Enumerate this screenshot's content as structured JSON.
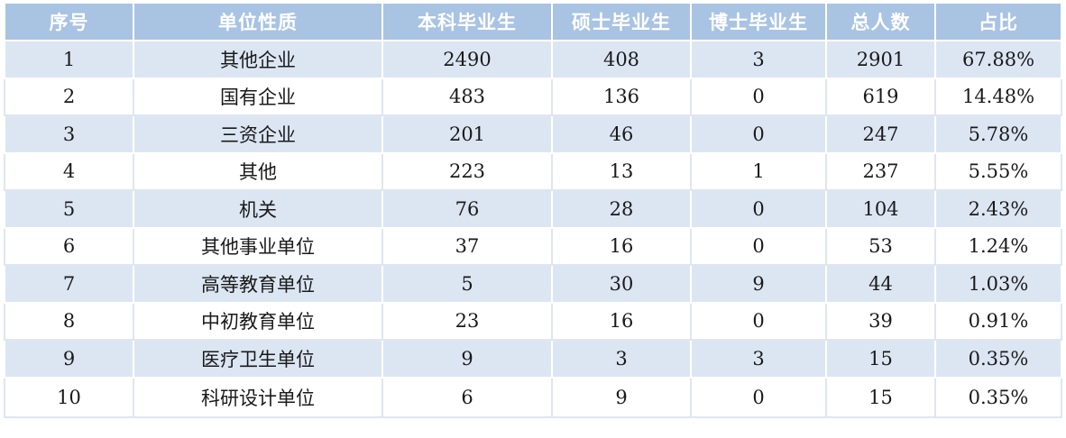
{
  "columns": [
    "序号",
    "单位性质",
    "本科毕业生",
    "硕士毕业生",
    "博士毕业生",
    "总人数",
    "占比"
  ],
  "rows": [
    {
      "no": "1",
      "nature": "其他企业",
      "bachelor": "2490",
      "master": "408",
      "doctor": "3",
      "total": "2901",
      "ratio": "67.88%"
    },
    {
      "no": "2",
      "nature": "国有企业",
      "bachelor": "483",
      "master": "136",
      "doctor": "0",
      "total": "619",
      "ratio": "14.48%"
    },
    {
      "no": "3",
      "nature": "三资企业",
      "bachelor": "201",
      "master": "46",
      "doctor": "0",
      "total": "247",
      "ratio": "5.78%"
    },
    {
      "no": "4",
      "nature": "其他",
      "bachelor": "223",
      "master": "13",
      "doctor": "1",
      "total": "237",
      "ratio": "5.55%"
    },
    {
      "no": "5",
      "nature": "机关",
      "bachelor": "76",
      "master": "28",
      "doctor": "0",
      "total": "104",
      "ratio": "2.43%"
    },
    {
      "no": "6",
      "nature": "其他事业单位",
      "bachelor": "37",
      "master": "16",
      "doctor": "0",
      "total": "53",
      "ratio": "1.24%"
    },
    {
      "no": "7",
      "nature": "高等教育单位",
      "bachelor": "5",
      "master": "30",
      "doctor": "9",
      "total": "44",
      "ratio": "1.03%"
    },
    {
      "no": "8",
      "nature": "中初教育单位",
      "bachelor": "23",
      "master": "16",
      "doctor": "0",
      "total": "39",
      "ratio": "0.91%"
    },
    {
      "no": "9",
      "nature": "医疗卫生单位",
      "bachelor": "9",
      "master": "3",
      "doctor": "3",
      "total": "15",
      "ratio": "0.35%"
    },
    {
      "no": "10",
      "nature": "科研设计单位",
      "bachelor": "6",
      "master": "9",
      "doctor": "0",
      "total": "15",
      "ratio": "0.35%"
    }
  ],
  "colors": {
    "header_bg": "#a9c3e3",
    "header_text": "#ffffff",
    "band_bg": "#dce6f3",
    "plain_bg": "#ffffff",
    "text": "#1a1a1a"
  }
}
